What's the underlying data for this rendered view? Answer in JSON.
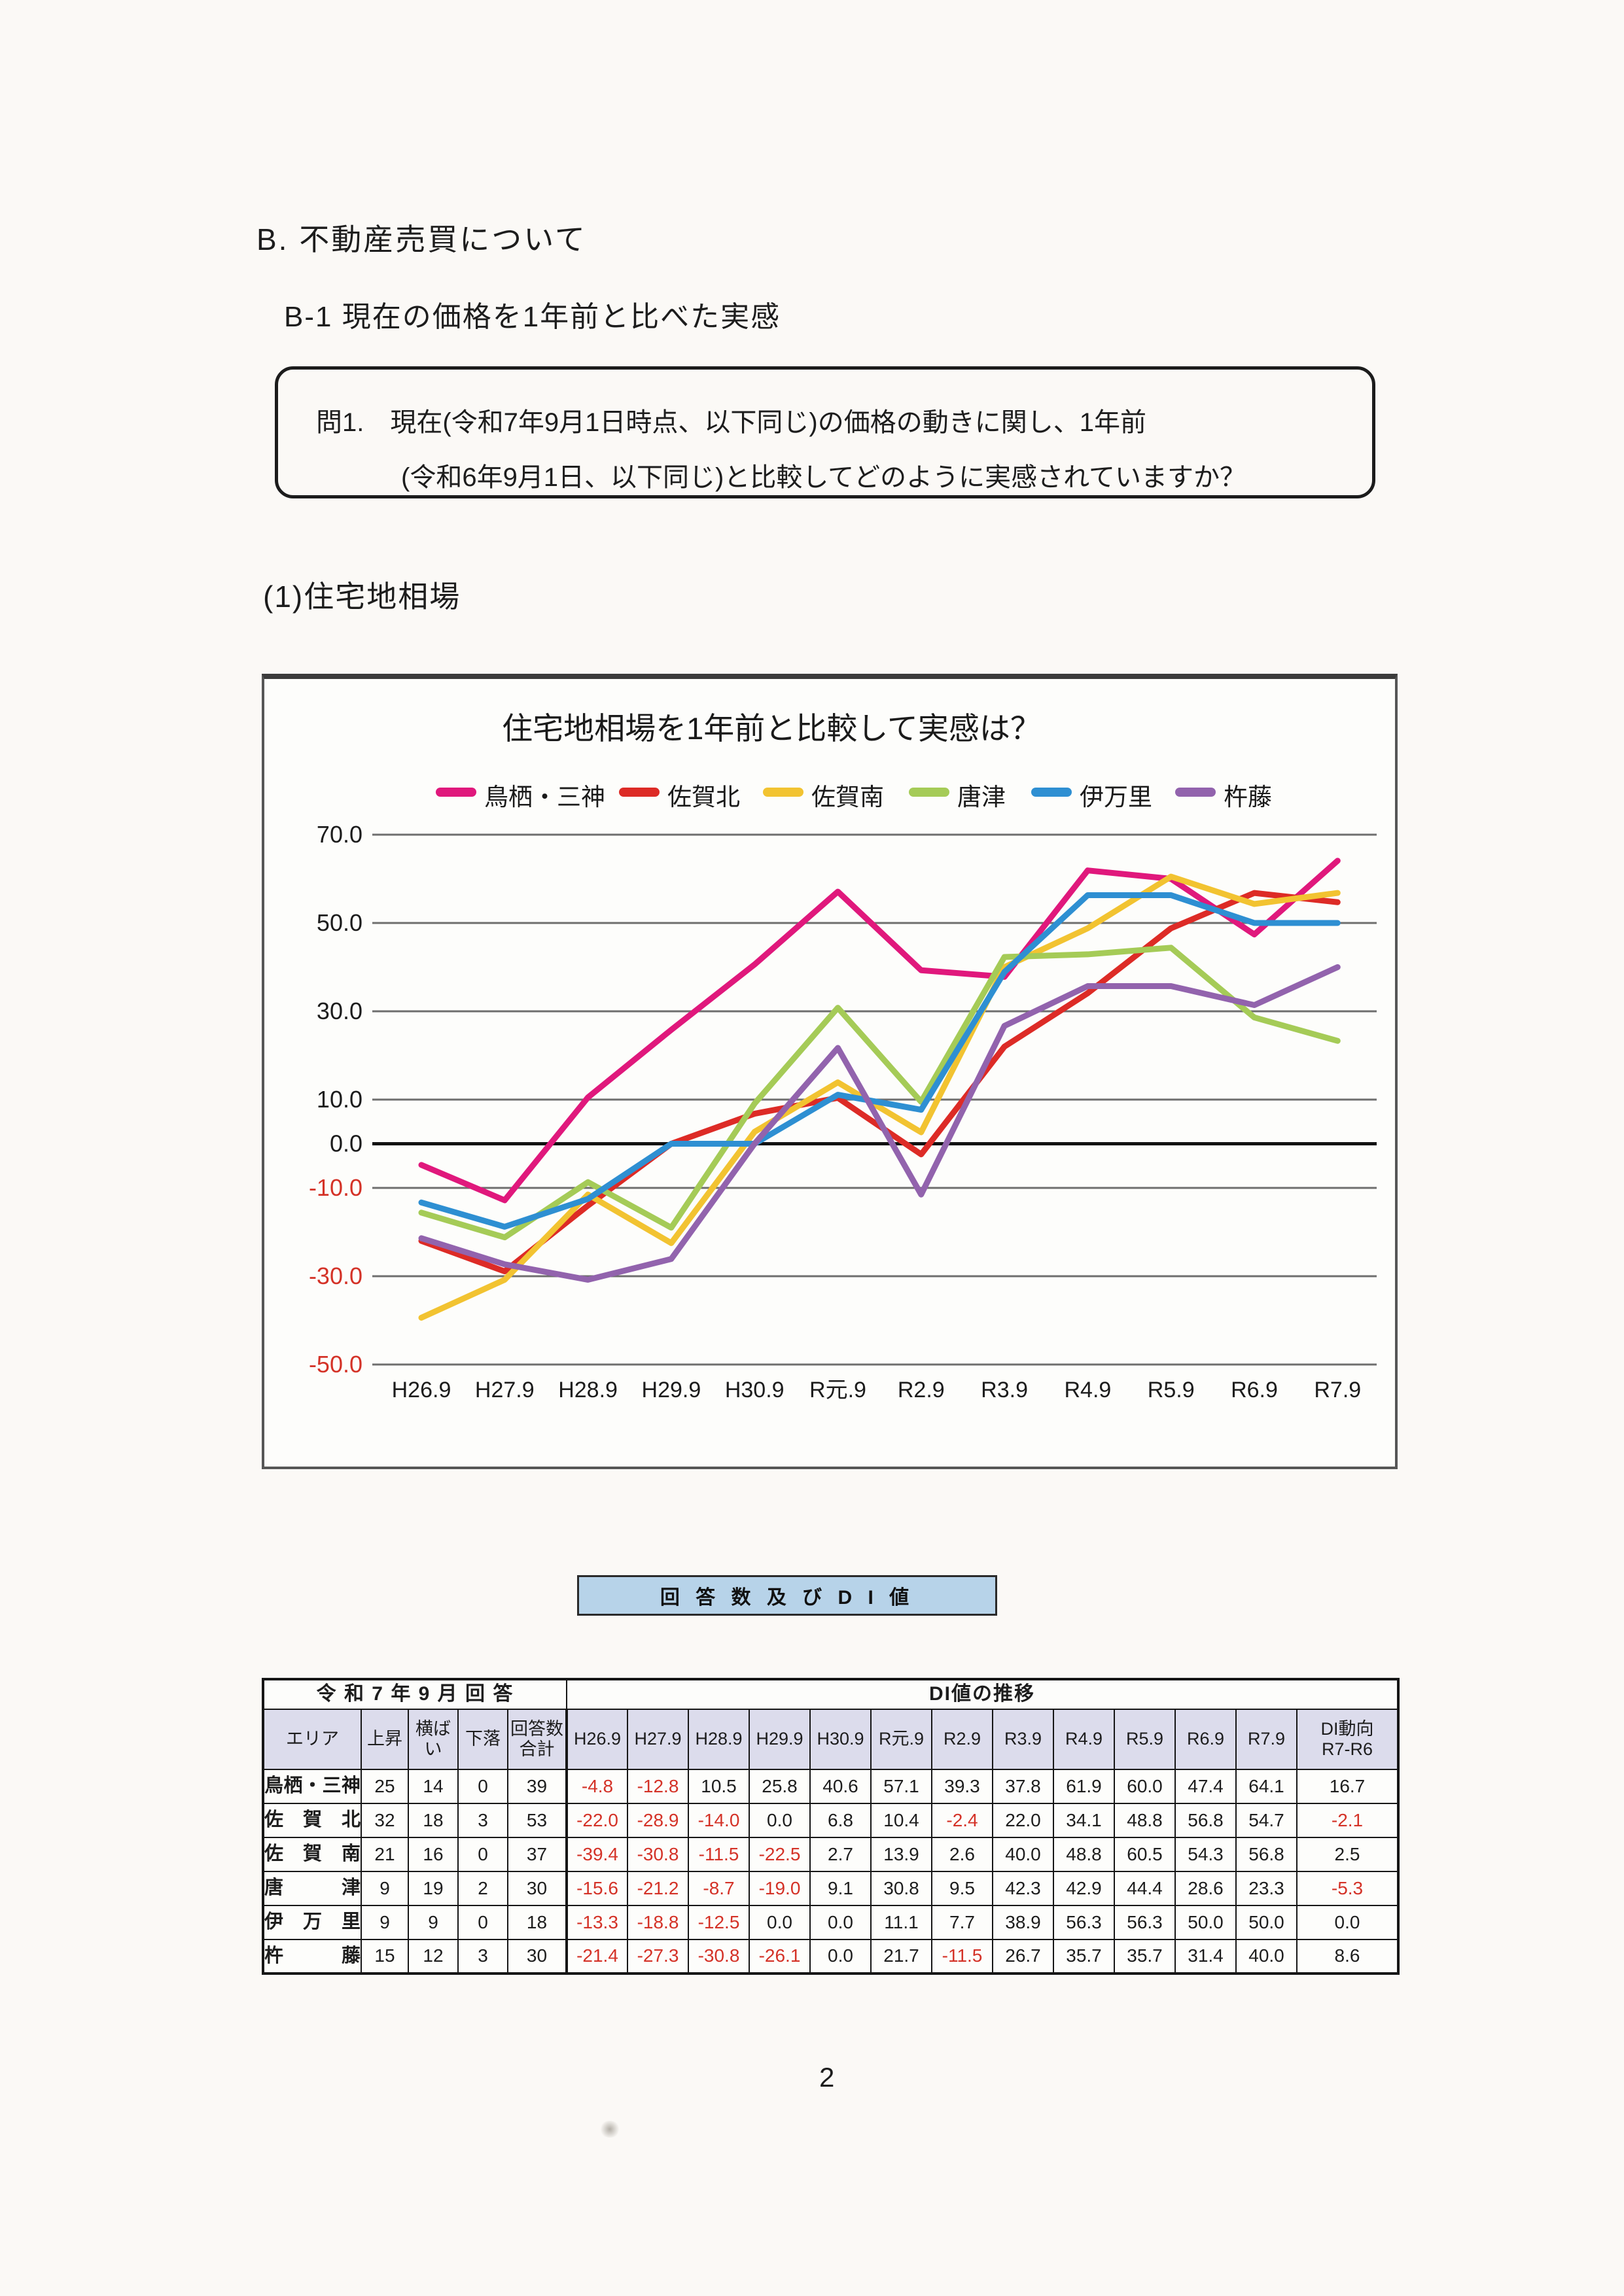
{
  "page": {
    "doc_title": "B. 不動産売買について",
    "section_title": "B-1 現在の価格を1年前と比べた実感",
    "question": {
      "line1": "問1.　現在(令和7年9月1日時点、以下同じ)の価格の動きに関し、1年前",
      "line2": "(令和6年9月1日、以下同じ)と比較してどのように実感されていますか？"
    },
    "subsection_label": "(1)住宅地相場",
    "table_banner": "回 答 数 及 び D I 値",
    "page_number": "2"
  },
  "chart_data": {
    "type": "line",
    "title": "住宅地相場を1年前と比較して実感は？",
    "x": [
      "H26.9",
      "H27.9",
      "H28.9",
      "H29.9",
      "H30.9",
      "R元.9",
      "R2.9",
      "R3.9",
      "R4.9",
      "R5.9",
      "R6.9",
      "R7.9"
    ],
    "ylim": [
      -50,
      70
    ],
    "yticks": [
      70,
      50,
      30,
      10,
      0,
      -10,
      -30,
      -50
    ],
    "grid": true,
    "legend_position": "top",
    "negative_tick_color": "#d43227",
    "series": [
      {
        "name": "鳥栖・三神",
        "color": "#e0187c",
        "values": [
          -4.8,
          -12.8,
          10.5,
          25.8,
          40.6,
          57.1,
          39.3,
          37.8,
          61.9,
          60.0,
          47.4,
          64.1
        ]
      },
      {
        "name": "佐賀北",
        "color": "#dd2b26",
        "values": [
          -22.0,
          -28.9,
          -14.0,
          0.0,
          6.8,
          10.4,
          -2.4,
          22.0,
          34.1,
          48.8,
          56.8,
          54.7
        ]
      },
      {
        "name": "佐賀南",
        "color": "#f2c331",
        "values": [
          -39.4,
          -30.8,
          -11.5,
          -22.5,
          2.7,
          13.9,
          2.6,
          40.0,
          48.8,
          60.5,
          54.3,
          56.8
        ]
      },
      {
        "name": "唐津",
        "color": "#a5cb57",
        "values": [
          -15.6,
          -21.2,
          -8.7,
          -19.0,
          9.1,
          30.8,
          9.5,
          42.3,
          42.9,
          44.4,
          28.6,
          23.3
        ]
      },
      {
        "name": "伊万里",
        "color": "#2e8fd2",
        "values": [
          -13.3,
          -18.8,
          -12.5,
          0.0,
          0.0,
          11.1,
          7.7,
          38.9,
          56.3,
          56.3,
          50.0,
          50.0
        ]
      },
      {
        "name": "杵藤",
        "color": "#9263ad",
        "values": [
          -21.4,
          -27.3,
          -30.8,
          -26.1,
          0.0,
          21.7,
          -11.5,
          26.7,
          35.7,
          35.7,
          31.4,
          40.0
        ]
      }
    ]
  },
  "table": {
    "group_header_left": "令 和 7 年 9 月 回 答",
    "group_header_right": "DI値の推移",
    "columns": [
      "エリア",
      "上昇",
      "横ばい",
      "下落",
      "回答数\n合計",
      "H26.9",
      "H27.9",
      "H28.9",
      "H29.9",
      "H30.9",
      "R元.9",
      "R2.9",
      "R3.9",
      "R4.9",
      "R5.9",
      "R6.9",
      "R7.9",
      "DI動向\nR7-R6"
    ],
    "rows": [
      {
        "area": "鳥栖・三神",
        "counts": [
          "25",
          "14",
          "0",
          "39"
        ],
        "di": [
          "-4.8",
          "-12.8",
          "10.5",
          "25.8",
          "40.6",
          "57.1",
          "39.3",
          "37.8",
          "61.9",
          "60.0",
          "47.4",
          "64.1"
        ],
        "trend": "16.7"
      },
      {
        "area": "佐賀北",
        "counts": [
          "32",
          "18",
          "3",
          "53"
        ],
        "di": [
          "-22.0",
          "-28.9",
          "-14.0",
          "0.0",
          "6.8",
          "10.4",
          "-2.4",
          "22.0",
          "34.1",
          "48.8",
          "56.8",
          "54.7"
        ],
        "trend": "-2.1"
      },
      {
        "area": "佐賀南",
        "counts": [
          "21",
          "16",
          "0",
          "37"
        ],
        "di": [
          "-39.4",
          "-30.8",
          "-11.5",
          "-22.5",
          "2.7",
          "13.9",
          "2.6",
          "40.0",
          "48.8",
          "60.5",
          "54.3",
          "56.8"
        ],
        "trend": "2.5"
      },
      {
        "area": "唐津",
        "counts": [
          "9",
          "19",
          "2",
          "30"
        ],
        "di": [
          "-15.6",
          "-21.2",
          "-8.7",
          "-19.0",
          "9.1",
          "30.8",
          "9.5",
          "42.3",
          "42.9",
          "44.4",
          "28.6",
          "23.3"
        ],
        "trend": "-5.3"
      },
      {
        "area": "伊万里",
        "counts": [
          "9",
          "9",
          "0",
          "18"
        ],
        "di": [
          "-13.3",
          "-18.8",
          "-12.5",
          "0.0",
          "0.0",
          "11.1",
          "7.7",
          "38.9",
          "56.3",
          "56.3",
          "50.0",
          "50.0"
        ],
        "trend": "0.0"
      },
      {
        "area": "杵藤",
        "counts": [
          "15",
          "12",
          "3",
          "30"
        ],
        "di": [
          "-21.4",
          "-27.3",
          "-30.8",
          "-26.1",
          "0.0",
          "21.7",
          "-11.5",
          "26.7",
          "35.7",
          "35.7",
          "31.4",
          "40.0"
        ],
        "trend": "8.6"
      }
    ]
  }
}
